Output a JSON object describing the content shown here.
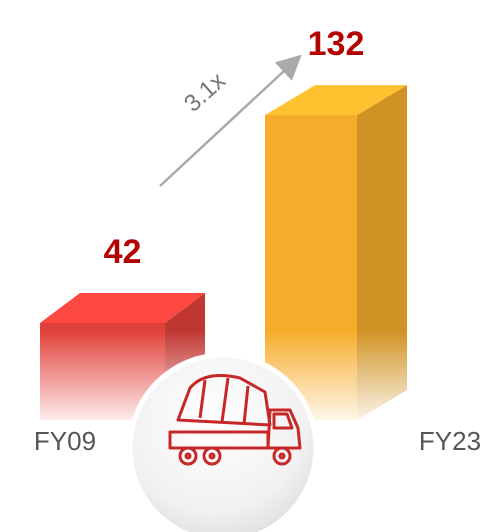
{
  "chart_data": {
    "type": "bar",
    "categories": [
      "FY09",
      "FY23"
    ],
    "values": [
      42,
      132
    ],
    "colors": [
      "#e2403a",
      "#f6ac2a"
    ],
    "annotation": "3.1x"
  }
}
